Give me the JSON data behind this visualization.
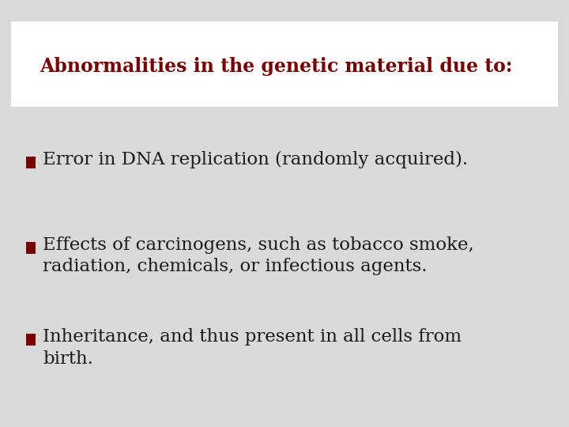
{
  "background_color": "#d9d9d9",
  "title_box_color": "#ffffff",
  "title_text": "Abnormalities in the genetic material due to:",
  "title_color": "#7b0000",
  "title_fontsize": 17,
  "bullet_color": "#7b0000",
  "bullet_text_color": "#1a1a1a",
  "bullet_fontsize": 16.5,
  "bullets": [
    {
      "line1": "Error in DNA replication (randomly acquired).",
      "line2": null
    },
    {
      "line1": "Effects of carcinogens, such as tobacco smoke,",
      "line2": "radiation, chemicals, or infectious agents."
    },
    {
      "line1": "Inheritance, and thus present in all cells from",
      "line2": "birth."
    }
  ]
}
